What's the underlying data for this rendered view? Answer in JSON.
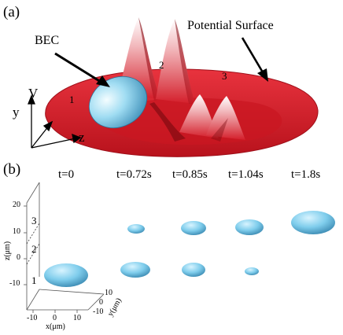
{
  "panel_a": {
    "label": "(a)",
    "bec_label": "BEC",
    "surface_label": "Potential Surface",
    "region_labels": [
      "1",
      "2",
      "3"
    ],
    "axis_letters": {
      "v": "V",
      "y": "y",
      "z": "z"
    }
  },
  "panel_b": {
    "label": "(b)",
    "times": [
      "t=0",
      "t=0.72s",
      "t=0.85s",
      "t=1.04s",
      "t=1.8s"
    ],
    "region_labels": [
      "3",
      "2",
      "1"
    ],
    "z_axis": {
      "label": "z(μm)",
      "ticks": [
        "20",
        "10",
        "0",
        "-10"
      ]
    },
    "x_axis": {
      "label": "x(μm)",
      "ticks": [
        "-10",
        "0",
        "10"
      ]
    },
    "y_axis": {
      "label": "y(μm)",
      "ticks": [
        "10",
        "0",
        "-10"
      ]
    }
  },
  "colors": {
    "surface": "#e0202c",
    "surface_dark": "#8e0a12",
    "bec": "#7fcdec",
    "bec_light": "#eafaff"
  }
}
